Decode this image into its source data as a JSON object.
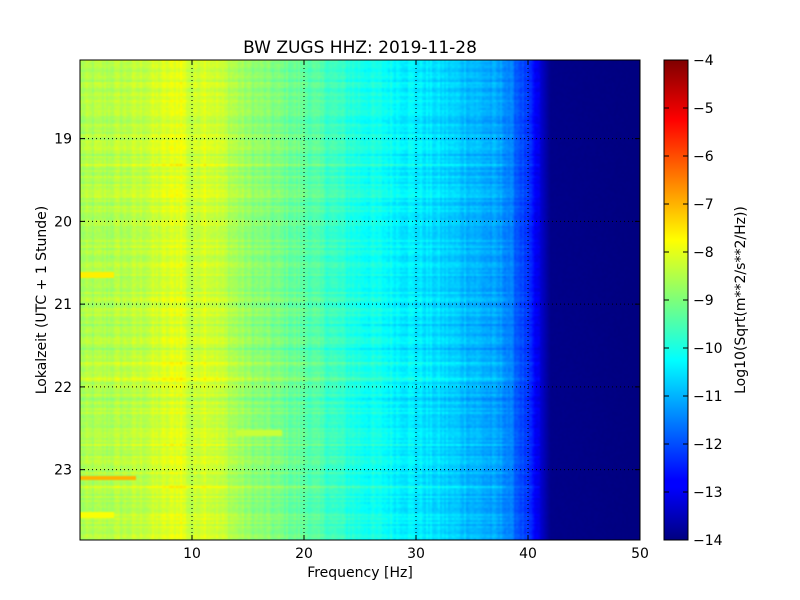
{
  "chart_data": {
    "type": "heatmap",
    "title": "BW ZUGS HHZ: 2019-11-28",
    "xlabel": "Frequency [Hz]",
    "ylabel": "Lokalzeit (UTC + 1 Stunde)",
    "x_range": [
      0,
      50
    ],
    "y_range": [
      18.05,
      23.85
    ],
    "x_ticks": [
      10,
      20,
      30,
      40,
      50
    ],
    "x_tick_labels": [
      "10",
      "20",
      "30",
      "40",
      "50"
    ],
    "y_ticks": [
      19,
      20,
      21,
      22,
      23
    ],
    "y_tick_labels": [
      "19",
      "20",
      "21",
      "22",
      "23"
    ],
    "grid": true,
    "colormap": "jet",
    "colorbar": {
      "label": "Log10(Sqrt(m**2/s**2/Hz))",
      "range": [
        -14,
        -4
      ],
      "ticks": [
        -4,
        -5,
        -6,
        -7,
        -8,
        -9,
        -10,
        -11,
        -12,
        -13,
        -14
      ],
      "tick_labels": [
        "−4",
        "−5",
        "−6",
        "−7",
        "−8",
        "−9",
        "−10",
        "−11",
        "−12",
        "−13",
        "−14"
      ]
    },
    "spectrum_profile": {
      "frequency_hz": [
        0,
        5,
        8,
        9,
        10,
        11,
        15,
        20,
        25,
        30,
        35,
        38,
        40,
        42,
        50
      ],
      "log10_amplitude": [
        -8.6,
        -8.4,
        -8.1,
        -7.9,
        -8.4,
        -8.0,
        -8.8,
        -9.3,
        -10.0,
        -10.4,
        -10.9,
        -11.3,
        -12.3,
        -13.9,
        -14.0
      ]
    },
    "bright_bands": [
      {
        "time_h": 20.65,
        "frequency_hz": [
          0,
          3
        ],
        "log10_amplitude": -7.6
      },
      {
        "time_h": 22.55,
        "frequency_hz": [
          14,
          18
        ],
        "log10_amplitude": -8.3
      },
      {
        "time_h": 23.1,
        "frequency_hz": [
          0,
          5
        ],
        "log10_amplitude": -7.0
      },
      {
        "time_h": 23.55,
        "frequency_hz": [
          0,
          3
        ],
        "log10_amplitude": -7.8
      }
    ]
  }
}
